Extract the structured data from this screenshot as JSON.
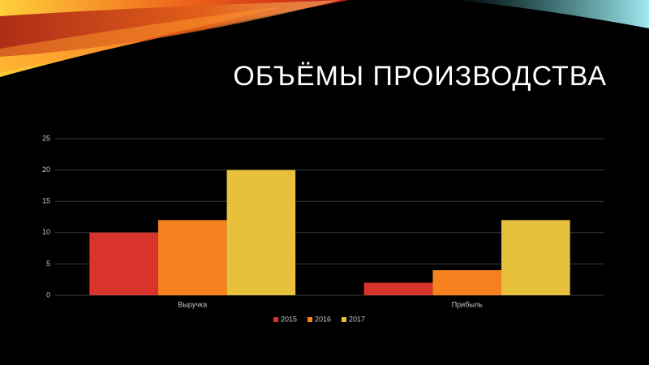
{
  "chart_data": {
    "type": "bar",
    "title": "ОБЪЁМЫ ПРОИЗВОДСТВА",
    "categories": [
      "Выручка",
      "Прибыль"
    ],
    "series": [
      {
        "name": "2015",
        "color": "#d9342b",
        "values": [
          10,
          2
        ]
      },
      {
        "name": "2016",
        "color": "#f5821f",
        "values": [
          12,
          4
        ]
      },
      {
        "name": "2017",
        "color": "#e8c13c",
        "values": [
          20,
          12
        ]
      }
    ],
    "ylim": [
      0,
      25
    ],
    "yticks": [
      0,
      5,
      10,
      15,
      20,
      25
    ],
    "grid": true,
    "legend": "bottom"
  }
}
